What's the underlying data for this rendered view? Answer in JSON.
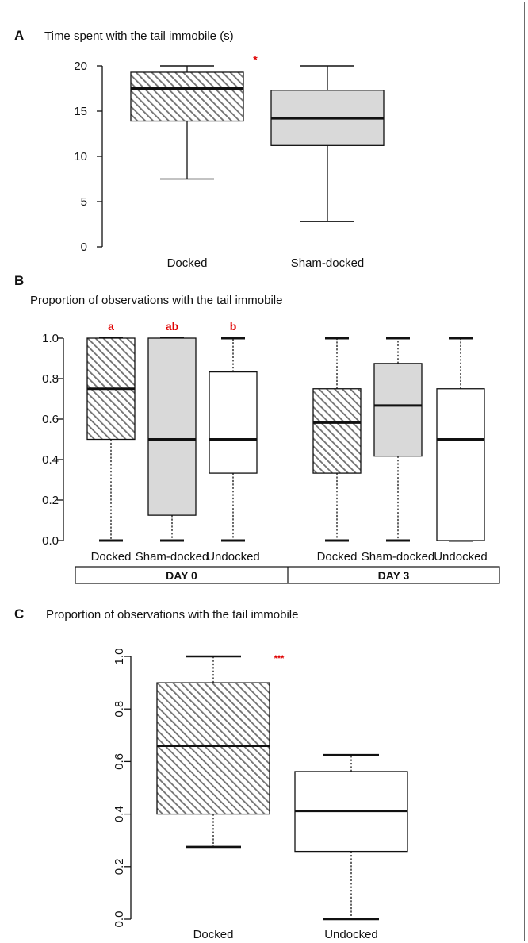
{
  "figure": {
    "colors": {
      "sig": "#e00000",
      "gray_fill": "#d9d9d9",
      "white_fill": "#ffffff",
      "hatch": "#707070",
      "ink": "#111111"
    }
  },
  "chart_data": [
    {
      "panel": "A",
      "type": "box",
      "title": "Time spent with the tail immobile (s)",
      "ylim": [
        0,
        20
      ],
      "yticks": [
        "0",
        "5",
        "10",
        "15",
        "20"
      ],
      "categories": [
        "Docked",
        "Sham-docked"
      ],
      "fills": [
        "hatch",
        "gray"
      ],
      "whisker_style": "solid",
      "boxes": [
        {
          "min": 7.5,
          "q1": 13.9,
          "median": 17.5,
          "q3": 19.3,
          "max": 20
        },
        {
          "min": 2.8,
          "q1": 11.2,
          "median": 14.2,
          "q3": 17.3,
          "max": 20
        }
      ],
      "annotations": [
        "*"
      ]
    },
    {
      "panel": "B",
      "type": "box",
      "title": "Proportion of observations with the tail immobile",
      "ylim": [
        0,
        1
      ],
      "yticks": [
        "0.0",
        "0.2",
        "0.4",
        "0.6",
        "0.8",
        "1.0"
      ],
      "categories": [
        "Docked",
        "Sham-docked",
        "Undocked",
        "Docked",
        "Sham-docked",
        "Undocked"
      ],
      "groups": [
        "DAY 0",
        "DAY 3"
      ],
      "fills": [
        "hatch",
        "gray",
        "white",
        "hatch",
        "gray",
        "white"
      ],
      "whisker_style": "dotted",
      "boxes": [
        {
          "min": 0,
          "q1": 0.5,
          "median": 0.75,
          "q3": 1.0,
          "max": 1.0
        },
        {
          "min": 0,
          "q1": 0.125,
          "median": 0.5,
          "q3": 1.0,
          "max": 1.0
        },
        {
          "min": 0,
          "q1": 0.333,
          "median": 0.5,
          "q3": 0.833,
          "max": 1.0
        },
        {
          "min": 0,
          "q1": 0.333,
          "median": 0.583,
          "q3": 0.75,
          "max": 1.0
        },
        {
          "min": 0,
          "q1": 0.417,
          "median": 0.667,
          "q3": 0.875,
          "max": 1.0
        },
        {
          "min": 0,
          "q1": 0.0,
          "median": 0.5,
          "q3": 0.75,
          "max": 1.0
        }
      ],
      "annotations": [
        "a",
        "ab",
        "b"
      ]
    },
    {
      "panel": "C",
      "type": "box",
      "title": "Proportion of observations with the tail immobile",
      "ylim": [
        0,
        1
      ],
      "yticks": [
        "0.0",
        "0.2",
        "0.4",
        "0.6",
        "0.8",
        "1.0"
      ],
      "categories": [
        "Docked",
        "Undocked"
      ],
      "fills": [
        "hatch",
        "white"
      ],
      "whisker_style": "dotted",
      "boxes": [
        {
          "min": 0.275,
          "q1": 0.4,
          "median": 0.66,
          "q3": 0.9,
          "max": 1.0
        },
        {
          "min": 0,
          "q1": 0.258,
          "median": 0.412,
          "q3": 0.562,
          "max": 0.625
        }
      ],
      "annotations": [
        "***"
      ]
    }
  ]
}
